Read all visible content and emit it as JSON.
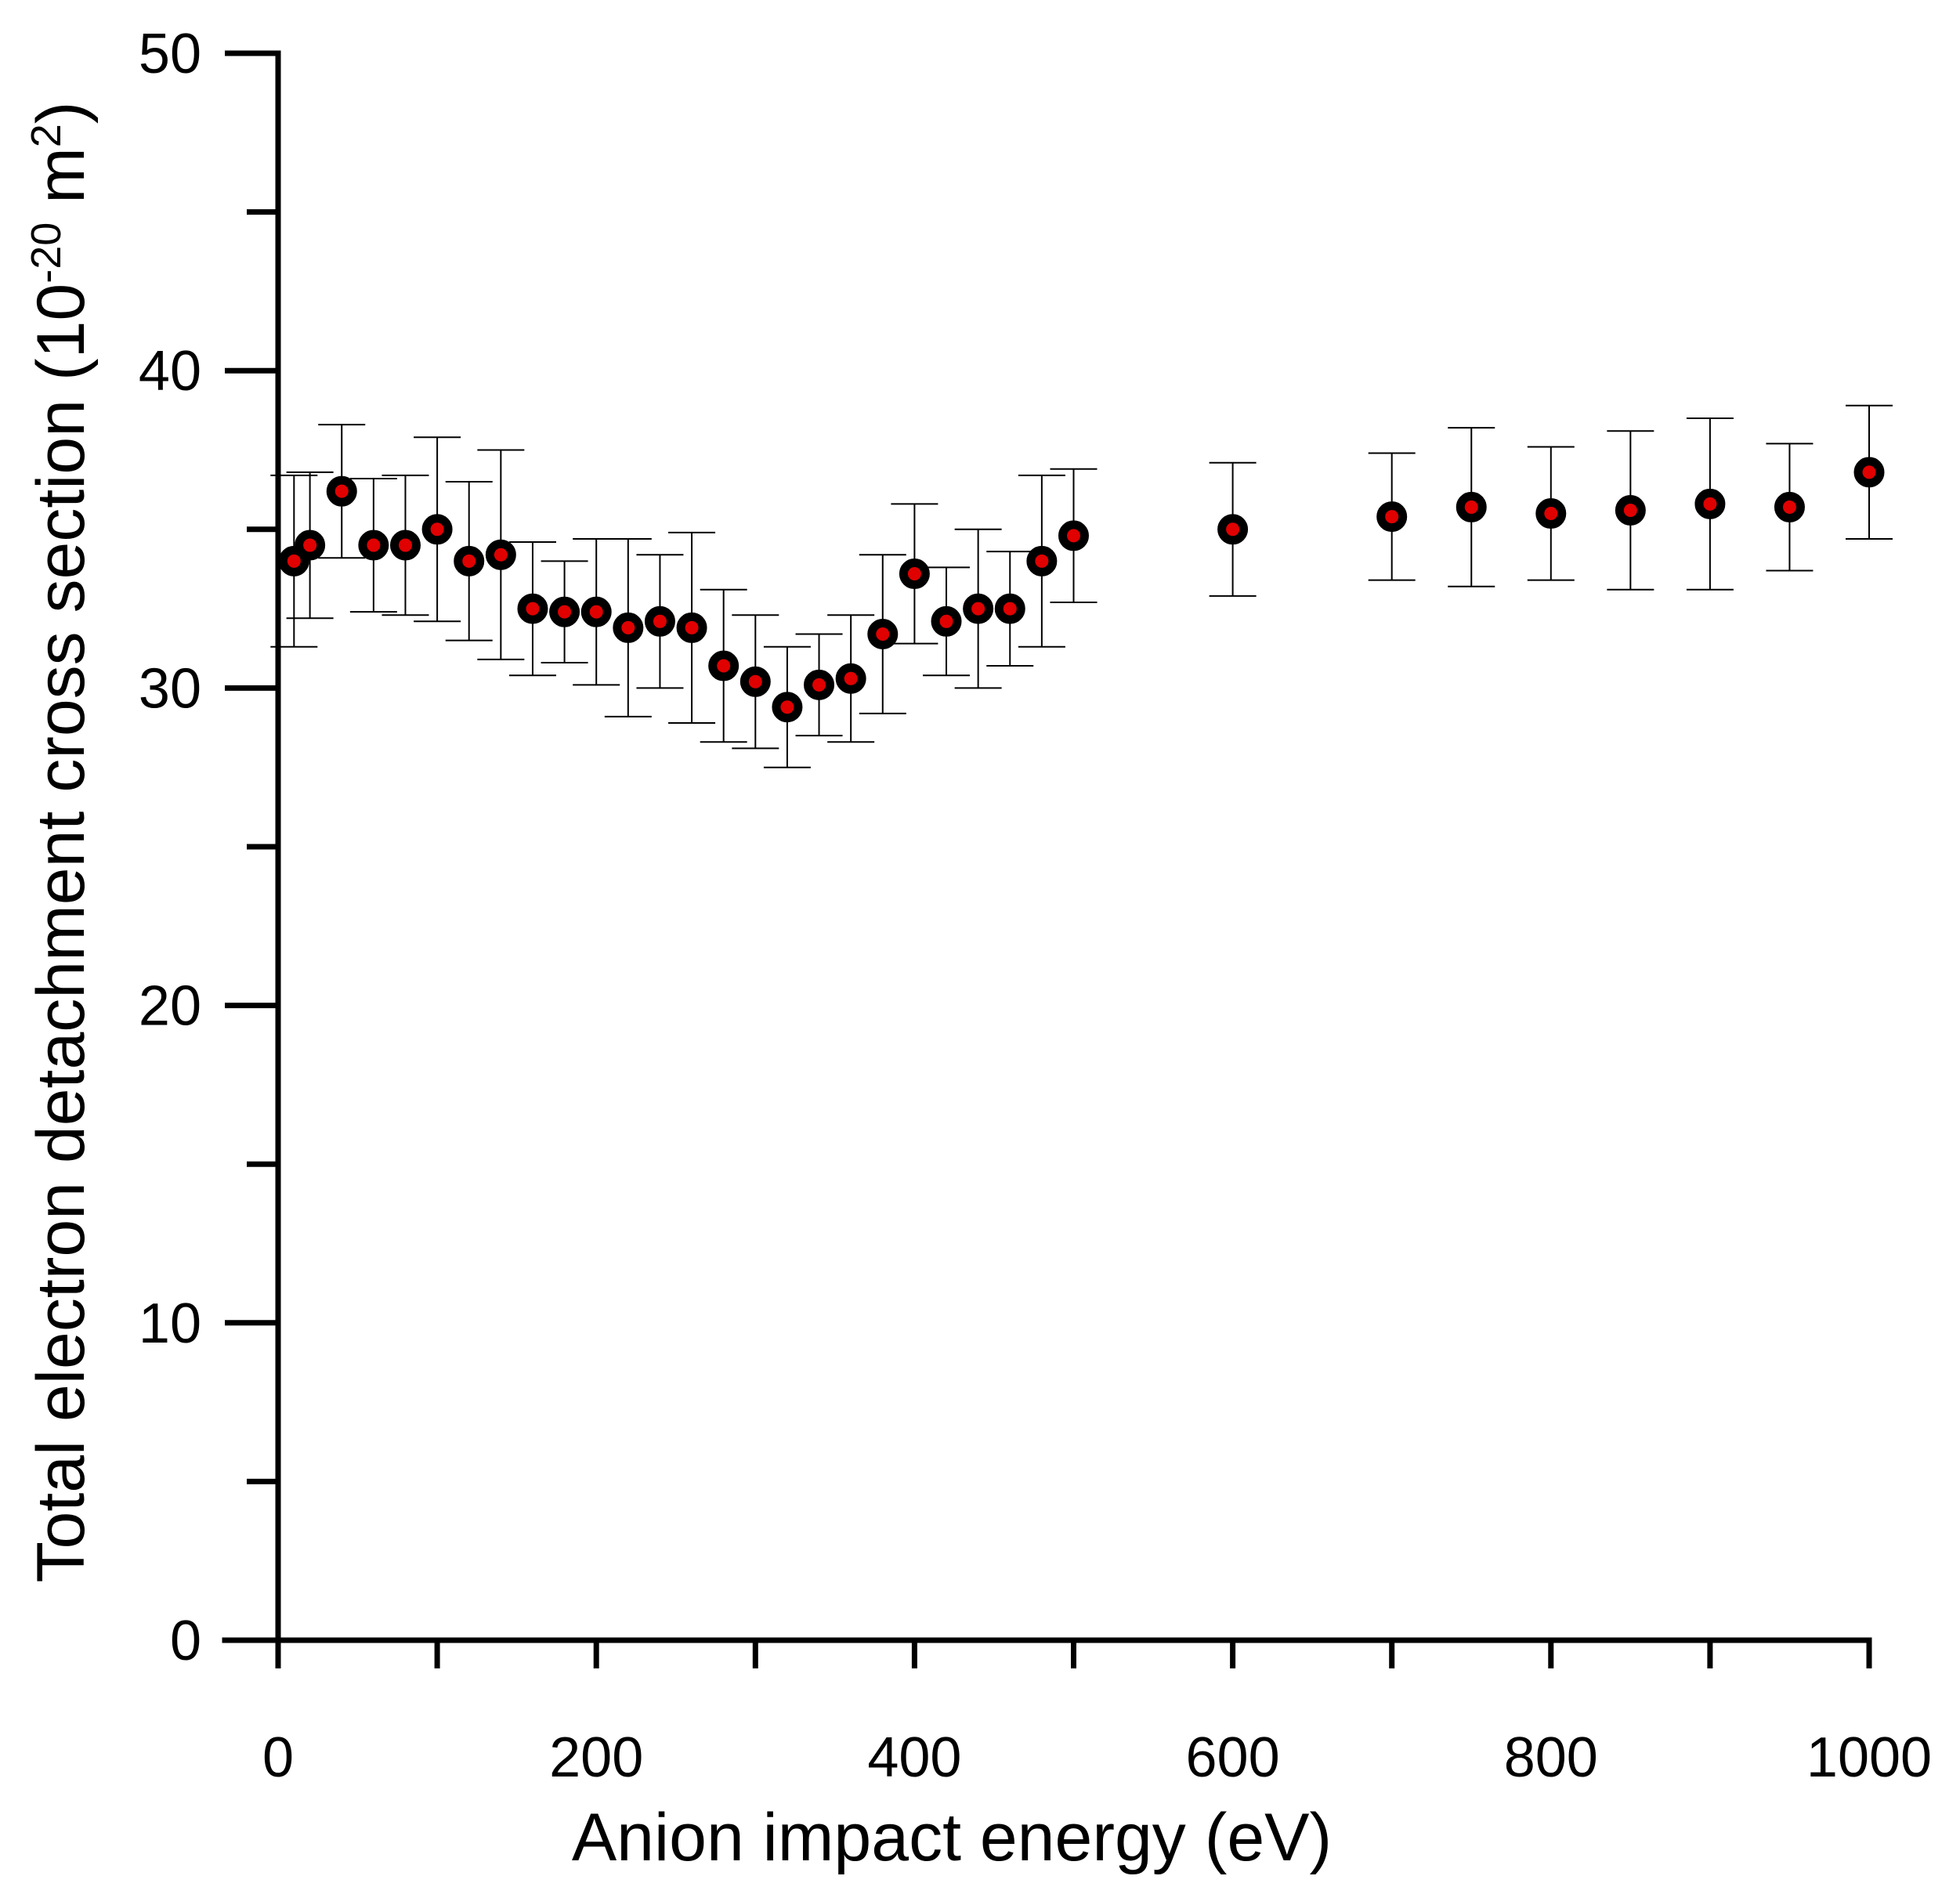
{
  "chart_data": {
    "type": "scatter",
    "xlabel": "Anion impact energy (eV)",
    "ylabel": {
      "prefix": "Total electron detachment cross section (10",
      "exponent": "-20",
      "unit_base": " m",
      "unit_exponent": "2",
      "suffix": ")"
    },
    "xlim": [
      0,
      1000
    ],
    "ylim": [
      0,
      50
    ],
    "x_ticks": [
      0,
      200,
      400,
      600,
      800,
      1000
    ],
    "x_tick_labels": [
      "0",
      "200",
      "400",
      "600",
      "800",
      "1000"
    ],
    "x_minor_ticks": [
      100,
      300,
      500,
      700,
      900
    ],
    "y_ticks": [
      0,
      10,
      20,
      30,
      40,
      50
    ],
    "y_tick_labels": [
      "0",
      "10",
      "20",
      "30",
      "40",
      "50"
    ],
    "y_minor_ticks": [
      5,
      15,
      25,
      35,
      45
    ],
    "grid": false,
    "legend": false,
    "marker": {
      "fill": "#e00000",
      "edge": "#000000"
    },
    "errorbar_color": "#000000",
    "series": [
      {
        "x": [
          10,
          20,
          40,
          60,
          80,
          100,
          120,
          140,
          160,
          180,
          200,
          220,
          240,
          260,
          280,
          300,
          320,
          340,
          360,
          380,
          400,
          420,
          440,
          460,
          480,
          500,
          600,
          700,
          750,
          800,
          850,
          900,
          950,
          1000
        ],
        "y": [
          34.0,
          34.5,
          36.2,
          34.5,
          34.5,
          35.0,
          34.0,
          34.2,
          32.5,
          32.4,
          32.4,
          31.9,
          32.1,
          31.9,
          30.7,
          30.2,
          29.4,
          30.1,
          30.3,
          31.7,
          33.6,
          32.1,
          32.5,
          32.5,
          34.0,
          34.8,
          35.0,
          35.4,
          35.7,
          35.5,
          35.6,
          35.8,
          35.7,
          36.8
        ],
        "err": [
          2.7,
          2.3,
          2.1,
          2.1,
          2.2,
          2.9,
          2.5,
          3.3,
          2.1,
          1.6,
          2.3,
          2.8,
          2.1,
          3.0,
          2.4,
          2.1,
          1.9,
          1.6,
          2.0,
          2.5,
          2.2,
          1.7,
          2.5,
          1.8,
          2.7,
          2.1,
          2.1,
          2.0,
          2.5,
          2.1,
          2.5,
          2.7,
          2.0,
          2.1
        ]
      }
    ]
  }
}
